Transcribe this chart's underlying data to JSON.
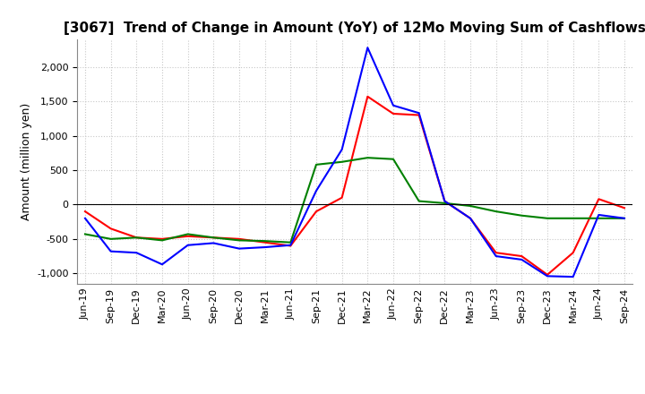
{
  "title": "[3067]  Trend of Change in Amount (YoY) of 12Mo Moving Sum of Cashflows",
  "ylabel": "Amount (million yen)",
  "title_fontsize": 11,
  "label_fontsize": 9,
  "tick_fontsize": 8,
  "x_labels": [
    "Jun-19",
    "Sep-19",
    "Dec-19",
    "Mar-20",
    "Jun-20",
    "Sep-20",
    "Dec-20",
    "Mar-21",
    "Jun-21",
    "Sep-21",
    "Dec-21",
    "Mar-22",
    "Jun-22",
    "Sep-22",
    "Dec-22",
    "Mar-23",
    "Jun-23",
    "Sep-23",
    "Dec-23",
    "Mar-24",
    "Jun-24",
    "Sep-24"
  ],
  "operating_cashflow": [
    -100,
    -350,
    -480,
    -500,
    -460,
    -480,
    -500,
    -550,
    -600,
    -100,
    100,
    1570,
    1320,
    1300,
    50,
    -200,
    -700,
    -750,
    -1020,
    -700,
    80,
    -50
  ],
  "investing_cashflow": [
    -430,
    -500,
    -480,
    -520,
    -430,
    -480,
    -520,
    -530,
    -550,
    580,
    620,
    680,
    660,
    50,
    20,
    -20,
    -100,
    -160,
    -200,
    -200,
    -200,
    -200
  ],
  "free_cashflow": [
    -200,
    -680,
    -700,
    -870,
    -590,
    -560,
    -640,
    -620,
    -590,
    200,
    800,
    2280,
    1440,
    1330,
    50,
    -200,
    -750,
    -800,
    -1040,
    -1050,
    -150,
    -200
  ],
  "operating_color": "#ff0000",
  "investing_color": "#008000",
  "free_color": "#0000ff",
  "ylim": [
    -1150,
    2400
  ],
  "yticks": [
    -1000,
    -500,
    0,
    500,
    1000,
    1500,
    2000
  ],
  "background_color": "#ffffff",
  "grid_color": "#c8c8c8"
}
